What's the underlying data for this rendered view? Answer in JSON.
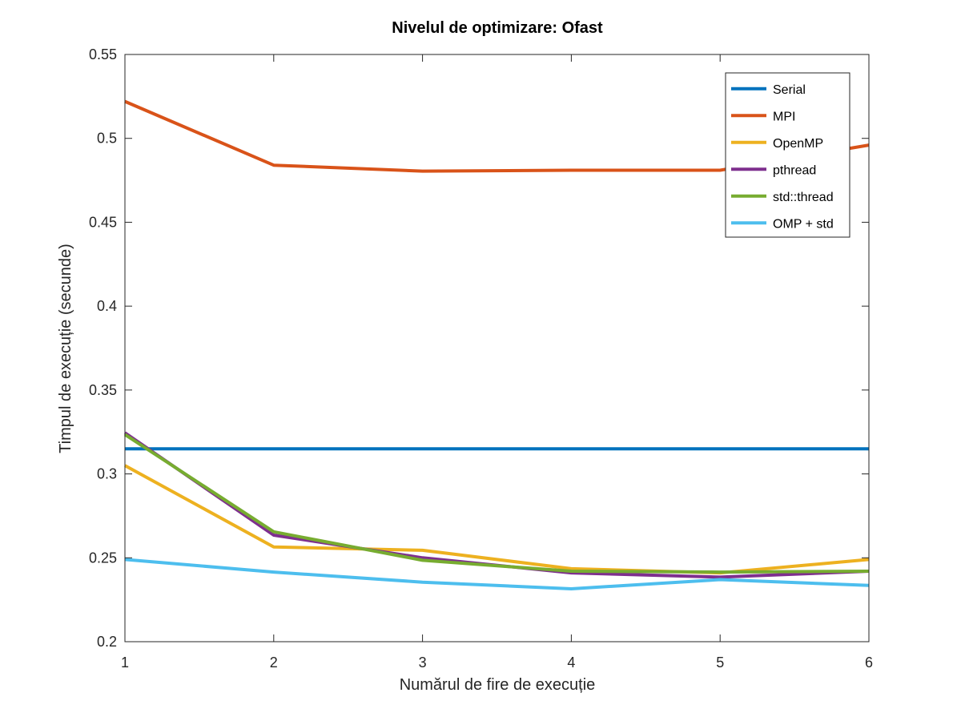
{
  "chart_data": {
    "type": "line",
    "title": "Nivelul de optimizare: Ofast",
    "xlabel": "Numărul de fire de execuție",
    "ylabel": "Timpul de execuție (secunde)",
    "xlim": [
      1,
      6
    ],
    "ylim": [
      0.2,
      0.55
    ],
    "xticks": [
      1,
      2,
      3,
      4,
      5,
      6
    ],
    "yticks": [
      0.2,
      0.25,
      0.3,
      0.35,
      0.4,
      0.45,
      0.5,
      0.55
    ],
    "ytick_labels": [
      "0.2",
      "0.25",
      "0.3",
      "0.35",
      "0.4",
      "0.45",
      "0.5",
      "0.55"
    ],
    "grid": false,
    "legend_position": "top-right",
    "x": [
      1,
      2,
      3,
      4,
      5,
      6
    ],
    "series": [
      {
        "name": "Serial",
        "color": "#0072BD",
        "values": [
          0.315,
          0.315,
          0.315,
          0.315,
          0.315,
          0.315
        ]
      },
      {
        "name": "MPI",
        "color": "#D95319",
        "values": [
          0.522,
          0.484,
          0.4805,
          0.481,
          0.481,
          0.496
        ]
      },
      {
        "name": "OpenMP",
        "color": "#EDB120",
        "values": [
          0.305,
          0.2565,
          0.2545,
          0.2435,
          0.241,
          0.249
        ]
      },
      {
        "name": "pthread",
        "color": "#7E2F8E",
        "values": [
          0.3245,
          0.2635,
          0.25,
          0.241,
          0.2385,
          0.242
        ]
      },
      {
        "name": "std::thread",
        "color": "#77AC30",
        "values": [
          0.3235,
          0.2655,
          0.2485,
          0.242,
          0.2415,
          0.242
        ]
      },
      {
        "name": "OMP + std",
        "color": "#4DBEEE",
        "values": [
          0.249,
          0.2415,
          0.2355,
          0.2315,
          0.237,
          0.2335
        ]
      }
    ]
  }
}
